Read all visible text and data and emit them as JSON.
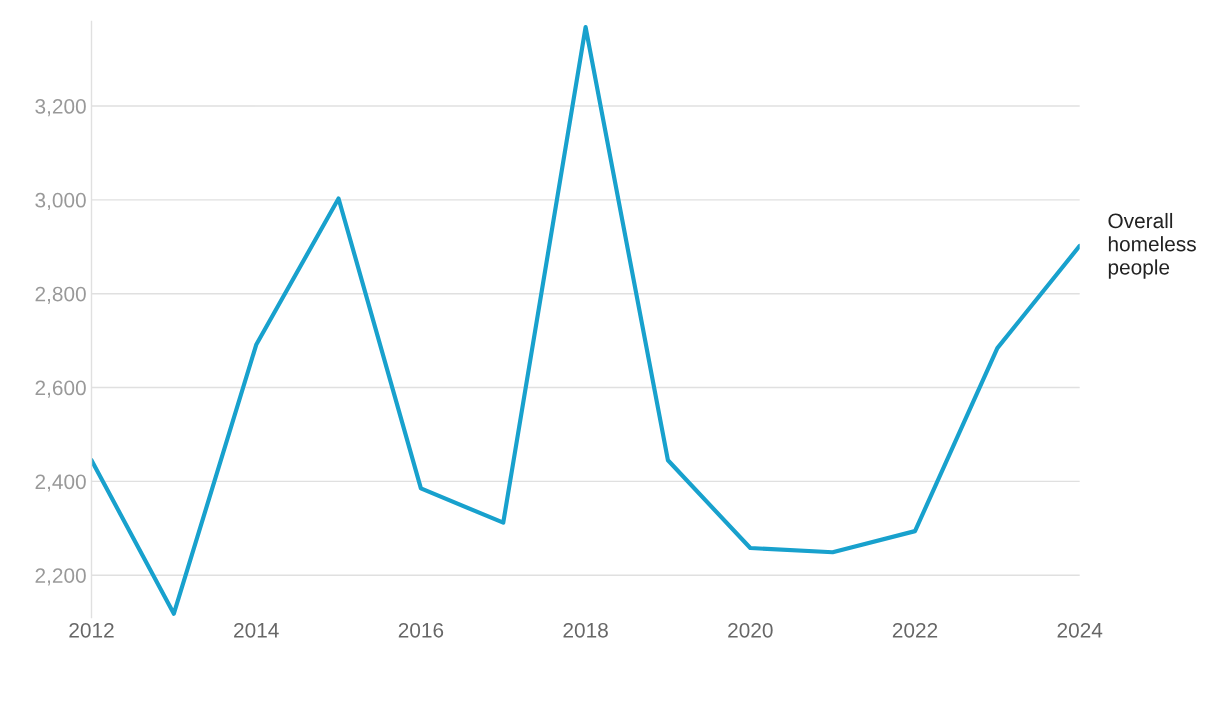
{
  "chart_data": {
    "type": "line",
    "x": [
      2012,
      2013,
      2014,
      2015,
      2016,
      2017,
      2018,
      2019,
      2020,
      2021,
      2022,
      2023,
      2024
    ],
    "series": [
      {
        "name": "Overall homeless people",
        "color": "#18a1cd",
        "values": [
          2445,
          2118,
          2691,
          3003,
          2385,
          2312,
          3368,
          2445,
          2258,
          2249,
          2294,
          2684,
          2902
        ]
      }
    ],
    "xlim": [
      2012,
      2024
    ],
    "xticks": [
      2012,
      2014,
      2016,
      2018,
      2020,
      2022,
      2024
    ],
    "ylim": [
      2110,
      3380
    ],
    "yticks": [
      {
        "value": 2200,
        "label": "2,200"
      },
      {
        "value": 2400,
        "label": "2,400"
      },
      {
        "value": 2600,
        "label": "2,600"
      },
      {
        "value": 2800,
        "label": "2,800"
      },
      {
        "value": 3000,
        "label": "3,000"
      },
      {
        "value": 3200,
        "label": "3,200"
      }
    ],
    "grid": "y",
    "marker": "none",
    "line_style": "solid"
  }
}
